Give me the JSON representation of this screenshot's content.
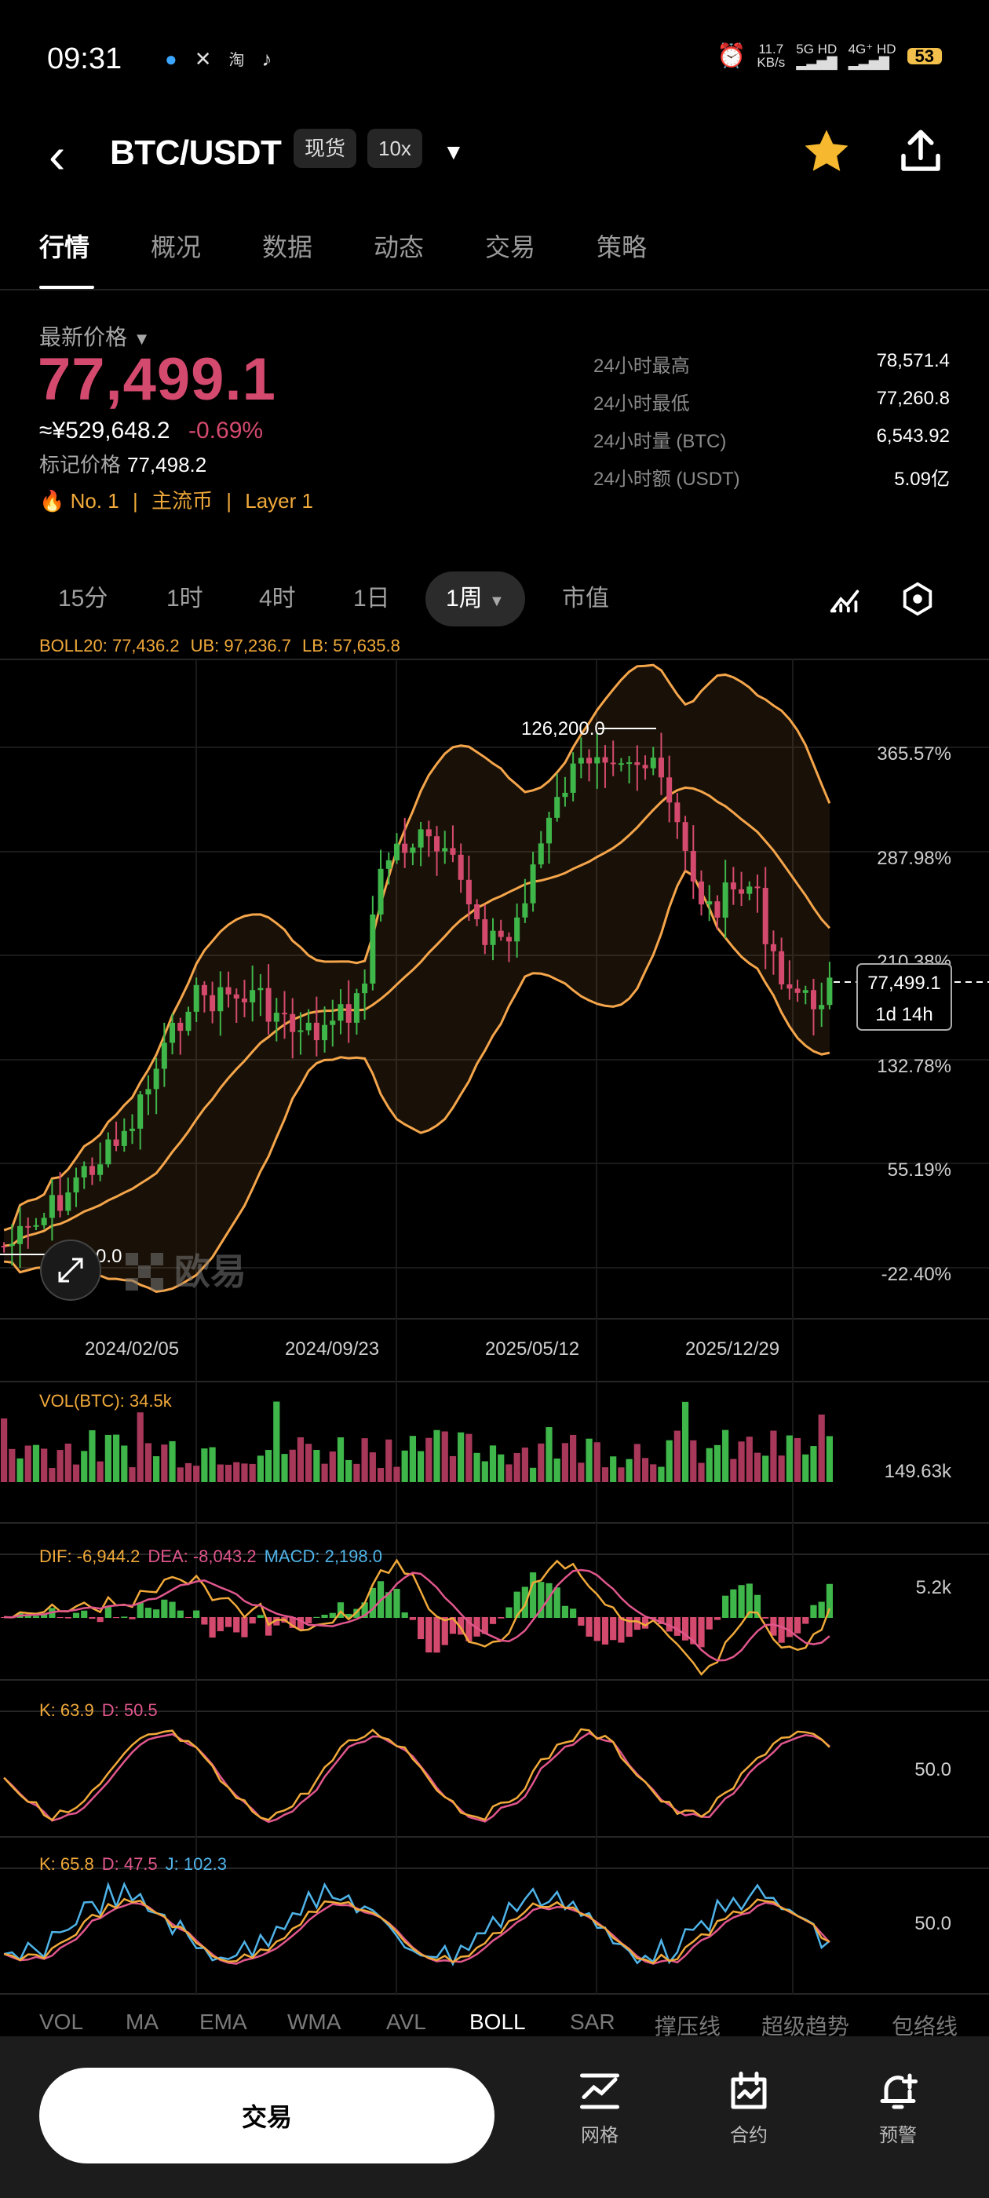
{
  "status_bar": {
    "time": "09:31",
    "app_icons": [
      "QQ",
      "X",
      "淘",
      "抖"
    ],
    "net_speed": "11.7",
    "net_unit": "KB/s",
    "sig1": "5G HD",
    "sig2": "4G⁺ HD",
    "battery": "53"
  },
  "header": {
    "pair": "BTC/USDT",
    "market_type": "现货",
    "leverage": "10x"
  },
  "tabs": [
    "行情",
    "概况",
    "数据",
    "动态",
    "交易",
    "策略"
  ],
  "ticker": {
    "last_label": "最新价格",
    "last_price": "77,499.1",
    "cny": "≈¥529,648.2",
    "change": "-0.69%",
    "mark_label": "标记价格",
    "mark_price": "77,498.2",
    "rank": "No. 1",
    "tag1": "主流币",
    "tag2": "Layer 1"
  },
  "stats": [
    {
      "label": "24小时最高",
      "value": "78,571.4"
    },
    {
      "label": "24小时最低",
      "value": "77,260.8"
    },
    {
      "label": "24小时量 (BTC)",
      "value": "6,543.92"
    },
    {
      "label": "24小时额 (USDT)",
      "value": "5.09亿"
    }
  ],
  "timeframes": [
    "15分",
    "1时",
    "4时",
    "1日",
    "1周",
    "市值"
  ],
  "selected_timeframe": "1周",
  "chart": {
    "boll_label": "BOLL20: 77,436.2",
    "ub_label": "UB: 97,236.7",
    "lb_label": "LB: 57,635.8",
    "y_ticks": [
      "365.57%",
      "287.98%",
      "210.38%",
      "132.78%",
      "55.19%",
      "-22.40%"
    ],
    "x_ticks": [
      "2024/02/05",
      "2024/09/23",
      "2025/05/12",
      "2025/12/29"
    ],
    "high_marker": "126,200.0",
    "low_marker": "2_,000.0",
    "current_price_tag": "77,499.1",
    "countdown": "1d 14h",
    "watermark": "欧易"
  },
  "indicators": {
    "vol": {
      "label": "VOL(BTC): 34.5k",
      "axis": "149.63k"
    },
    "macd": {
      "dif": "DIF: -6,944.2",
      "dea": "DEA: -8,043.2",
      "macd": "MACD: 2,198.0",
      "axis": "5.2k"
    },
    "kd": {
      "k": "K: 63.9",
      "d": "D: 50.5",
      "axis": "50.0"
    },
    "kdj": {
      "k": "K: 65.8",
      "d": "D: 47.5",
      "j": "J: 102.3",
      "axis": "50.0"
    }
  },
  "indicator_tabs": [
    "VOL",
    "MA",
    "EMA",
    "WMA",
    "AVL",
    "BOLL",
    "SAR",
    "撑压线",
    "超级趋势",
    "包络线"
  ],
  "active_indicator": "BOLL",
  "bottom_bar": {
    "trade": "交易",
    "grid": "网格",
    "futures": "合约",
    "alert": "预警"
  },
  "colors": {
    "up": "#3fb64a",
    "down": "#d44a6e",
    "accent": "#f0a93a",
    "band": "#f5a54a"
  }
}
